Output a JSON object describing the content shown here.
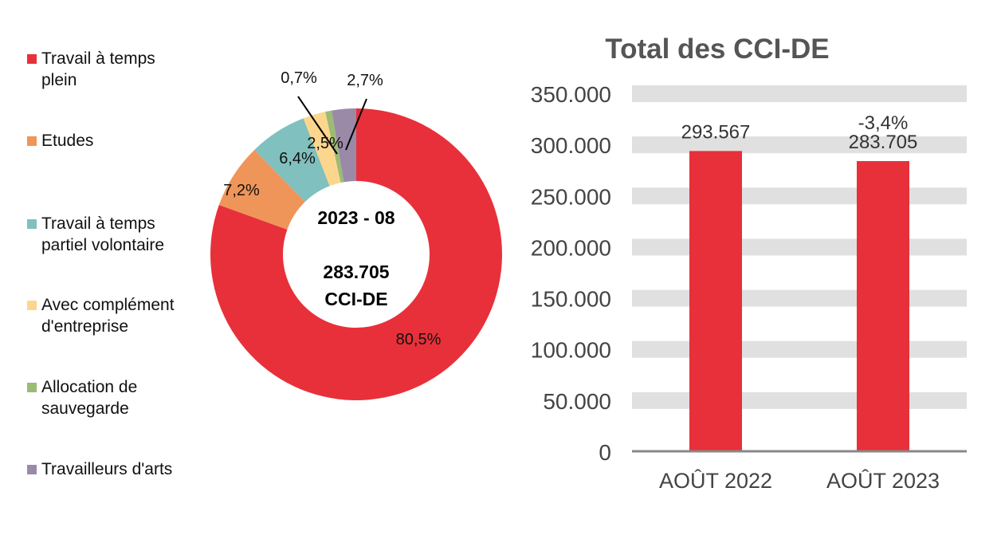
{
  "chart_data": [
    {
      "type": "pie",
      "variant": "donut",
      "center_text": {
        "line1": "2023 - 08",
        "line2": "283.705",
        "line3": "CCI-DE"
      },
      "legend_position": "left",
      "slices": [
        {
          "name": "Travail à temps plein",
          "value": 80.5,
          "label": "80,5%",
          "color": "#e8303a"
        },
        {
          "name": "Etudes",
          "value": 7.2,
          "label": "7,2%",
          "color": "#f0955a"
        },
        {
          "name": "Travail à temps partiel volontaire",
          "value": 6.4,
          "label": "6,4%",
          "color": "#80c0be"
        },
        {
          "name": "Avec complément d'entreprise",
          "value": 2.5,
          "label": "2,5%",
          "color": "#fcd68d"
        },
        {
          "name": "Allocation de sauvegarde",
          "value": 0.7,
          "label": "0,7%",
          "color": "#9cbb73"
        },
        {
          "name": "Travailleurs d'arts",
          "value": 2.7,
          "label": "2,7%",
          "color": "#9a8aa8"
        }
      ],
      "legend_lines": [
        [
          "Travail à temps",
          "plein"
        ],
        [
          "Etudes"
        ],
        [
          "Travail à temps",
          "partiel volontaire"
        ],
        [
          "Avec complément",
          "d'entreprise"
        ],
        [
          "Allocation de",
          "sauvegarde"
        ],
        [
          "Travailleurs d'arts"
        ]
      ]
    },
    {
      "type": "bar",
      "title": "Total des CCI-DE",
      "categories": [
        "AOÛT 2022",
        "AOÛT 2023"
      ],
      "values": [
        293567,
        283705
      ],
      "data_labels": [
        "293.567",
        "283.705"
      ],
      "annotation": "-3,4%",
      "ylim": [
        0,
        350000
      ],
      "yticks": [
        "0",
        "50.000",
        "100.000",
        "150.000",
        "200.000",
        "250.000",
        "300.000",
        "350.000"
      ],
      "grid": true,
      "bar_color": "#e8303a",
      "grid_color": "#e0e0e0"
    }
  ]
}
